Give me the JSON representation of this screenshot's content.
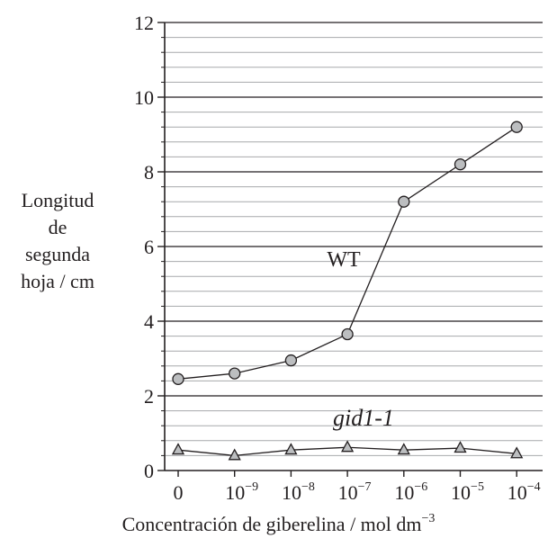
{
  "chart_data": {
    "type": "line",
    "xlabel": "Concentración de giberelina / mol dm",
    "xlabel_exponent": "−3",
    "ylabel_lines": [
      "Longitud",
      "de",
      "segunda",
      "hoja / cm"
    ],
    "categories": [
      "0",
      "10",
      "10",
      "10",
      "10",
      "10",
      "10"
    ],
    "category_exponents": [
      "",
      "−9",
      "−8",
      "−7",
      "−6",
      "−5",
      "−4"
    ],
    "y_ticks": [
      "0",
      "2",
      "4",
      "6",
      "8",
      "10",
      "12"
    ],
    "ylim": [
      0,
      12
    ],
    "grid": "horizontal",
    "series": [
      {
        "name": "WT",
        "marker": "circle",
        "values": [
          2.45,
          2.6,
          2.95,
          3.65,
          7.2,
          8.2,
          9.2
        ]
      },
      {
        "name": "gid1-1",
        "marker": "triangle",
        "values": [
          0.55,
          0.4,
          0.55,
          0.62,
          0.55,
          0.6,
          0.45
        ]
      }
    ],
    "colors": {
      "marker_fill": "#bcbec0",
      "line": "#231f20",
      "grid_minor": "#a7a9ac",
      "grid_major": "#231f20"
    }
  }
}
